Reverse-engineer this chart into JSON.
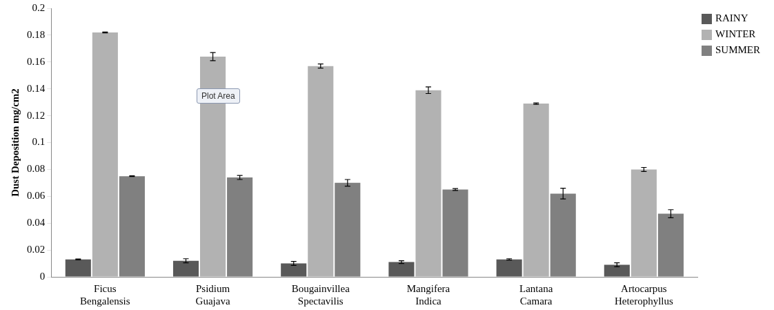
{
  "chart_data": {
    "type": "bar",
    "ylabel": "Dust Deposition mg/cm2",
    "categories": [
      "Ficus\nBengalensis",
      "Psidium\nGuajava",
      "Bougainvillea\nSpectavilis",
      "Mangifera\nIndica",
      "Lantana\nCamara",
      "Artocarpus\nHeterophyllus"
    ],
    "series": [
      {
        "name": "RAINY",
        "color": "#595959",
        "values": [
          0.013,
          0.012,
          0.01,
          0.011,
          0.013,
          0.009
        ],
        "errors": [
          0.0003,
          0.0015,
          0.0015,
          0.001,
          0.0005,
          0.0015
        ]
      },
      {
        "name": "WINTER",
        "color": "#b2b2b2",
        "values": [
          0.182,
          0.164,
          0.157,
          0.139,
          0.129,
          0.08
        ],
        "errors": [
          0.0003,
          0.003,
          0.0015,
          0.0025,
          0.0005,
          0.0015
        ]
      },
      {
        "name": "SUMMER",
        "color": "#808080",
        "values": [
          0.075,
          0.074,
          0.07,
          0.065,
          0.062,
          0.047
        ],
        "errors": [
          0.0003,
          0.0015,
          0.0025,
          0.0007,
          0.004,
          0.003
        ]
      }
    ],
    "ylim": [
      0,
      0.2
    ],
    "yticks": [
      0,
      0.02,
      0.04,
      0.06,
      0.08,
      0.1,
      0.12,
      0.14,
      0.16,
      0.18,
      0.2
    ],
    "grid": false,
    "legend": "top right",
    "annotations": [
      "Plot Area"
    ]
  }
}
